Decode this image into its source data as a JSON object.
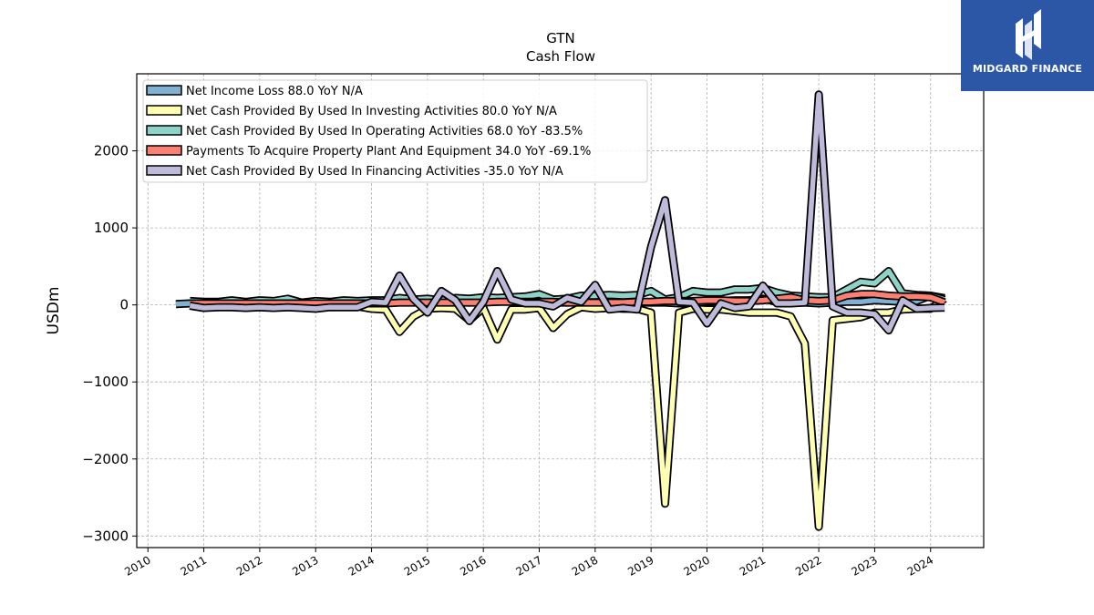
{
  "chart_data": {
    "type": "line",
    "title": "GTN",
    "subtitle": "Cash Flow",
    "xlabel": "",
    "ylabel": "USDm",
    "xlim": [
      2009.8,
      2024.95
    ],
    "ylim": [
      -3150,
      3000
    ],
    "x_ticks": [
      "2010",
      "2011",
      "2012",
      "2013",
      "2014",
      "2015",
      "2016",
      "2017",
      "2018",
      "2019",
      "2020",
      "2021",
      "2022",
      "2023",
      "2024"
    ],
    "y_ticks": [
      -3000,
      -2000,
      -1000,
      0,
      1000,
      2000
    ],
    "y_tick_labels": [
      "−3000",
      "−2000",
      "−1000",
      "0",
      "1000",
      "2000"
    ],
    "grid": true,
    "legend_position": "top-left",
    "x": [
      2010.5,
      2010.75,
      2011.0,
      2011.25,
      2011.5,
      2011.75,
      2012.0,
      2012.25,
      2012.5,
      2012.75,
      2013.0,
      2013.25,
      2013.5,
      2013.75,
      2014.0,
      2014.25,
      2014.5,
      2014.75,
      2015.0,
      2015.25,
      2015.5,
      2015.75,
      2016.0,
      2016.25,
      2016.5,
      2016.75,
      2017.0,
      2017.25,
      2017.5,
      2017.75,
      2018.0,
      2018.25,
      2018.5,
      2018.75,
      2019.0,
      2019.25,
      2019.5,
      2019.75,
      2020.0,
      2020.25,
      2020.5,
      2020.75,
      2021.0,
      2021.25,
      2021.5,
      2021.75,
      2022.0,
      2022.25,
      2022.5,
      2022.75,
      2023.0,
      2023.25,
      2023.5,
      2023.75,
      2024.0,
      2024.25
    ],
    "series": [
      {
        "name": "Net Income Loss  88.0 YoY N/A",
        "color": "#80b1d3",
        "values": [
          10,
          20,
          30,
          25,
          40,
          30,
          50,
          35,
          60,
          20,
          40,
          35,
          50,
          40,
          45,
          50,
          60,
          40,
          45,
          30,
          40,
          30,
          50,
          40,
          50,
          40,
          50,
          30,
          30,
          40,
          40,
          30,
          20,
          30,
          30,
          30,
          20,
          20,
          40,
          50,
          60,
          60,
          80,
          40,
          40,
          30,
          20,
          30,
          40,
          40,
          60,
          50,
          40,
          50,
          120,
          88
        ]
      },
      {
        "name": "Net Cash Provided By Used In Investing Activities  80.0 YoY N/A",
        "color": "#ffffb3",
        "values": [
          null,
          -10,
          -20,
          -20,
          -10,
          -20,
          -10,
          -20,
          -10,
          -20,
          -30,
          -20,
          -20,
          -20,
          -50,
          -60,
          -350,
          -150,
          -50,
          -40,
          -50,
          -200,
          -40,
          -450,
          -60,
          -60,
          -40,
          -300,
          -120,
          -30,
          -50,
          -40,
          -50,
          -50,
          -100,
          -2580,
          -100,
          -50,
          -60,
          -60,
          -80,
          -100,
          -100,
          -100,
          -150,
          -500,
          -2880,
          -200,
          -180,
          -160,
          -100,
          -100,
          -60,
          -50,
          -50,
          80
        ]
      },
      {
        "name": "Net Cash Provided By Used In Operating Activities  68.0 YoY -83.5%",
        "color": "#8dd3c7",
        "values": [
          null,
          50,
          40,
          40,
          60,
          40,
          60,
          50,
          80,
          30,
          50,
          40,
          60,
          50,
          60,
          60,
          90,
          70,
          80,
          60,
          90,
          80,
          100,
          90,
          100,
          110,
          140,
          70,
          80,
          120,
          120,
          130,
          120,
          130,
          180,
          70,
          100,
          180,
          160,
          160,
          200,
          200,
          220,
          160,
          120,
          110,
          100,
          100,
          200,
          300,
          280,
          440,
          150,
          130,
          120,
          68
        ]
      },
      {
        "name": "Payments To Acquire Property Plant And Equipment  34.0 YoY -69.1%",
        "color": "#fb8072",
        "values": [
          null,
          20,
          20,
          20,
          20,
          20,
          20,
          20,
          20,
          20,
          20,
          20,
          20,
          20,
          20,
          20,
          30,
          30,
          30,
          30,
          30,
          30,
          30,
          40,
          40,
          40,
          40,
          40,
          30,
          30,
          30,
          30,
          30,
          40,
          40,
          50,
          50,
          50,
          60,
          60,
          50,
          50,
          60,
          80,
          100,
          60,
          50,
          60,
          120,
          140,
          140,
          120,
          110,
          110,
          100,
          34
        ]
      },
      {
        "name": "Net Cash Provided By Used In Financing Activities  -35.0 YoY N/A",
        "color": "#bebada",
        "values": [
          null,
          -10,
          -40,
          -30,
          -30,
          -40,
          -30,
          -40,
          -30,
          -40,
          -50,
          -30,
          -30,
          -30,
          40,
          30,
          380,
          80,
          -100,
          180,
          60,
          -210,
          40,
          440,
          70,
          20,
          20,
          -20,
          90,
          40,
          260,
          -60,
          -40,
          -60,
          750,
          1360,
          40,
          30,
          -240,
          20,
          -40,
          -20,
          250,
          20,
          20,
          30,
          2730,
          -20,
          -100,
          -100,
          -120,
          -330,
          60,
          -50,
          -40,
          -35
        ]
      }
    ]
  },
  "logo": {
    "text": "MIDGARD FINANCE"
  }
}
